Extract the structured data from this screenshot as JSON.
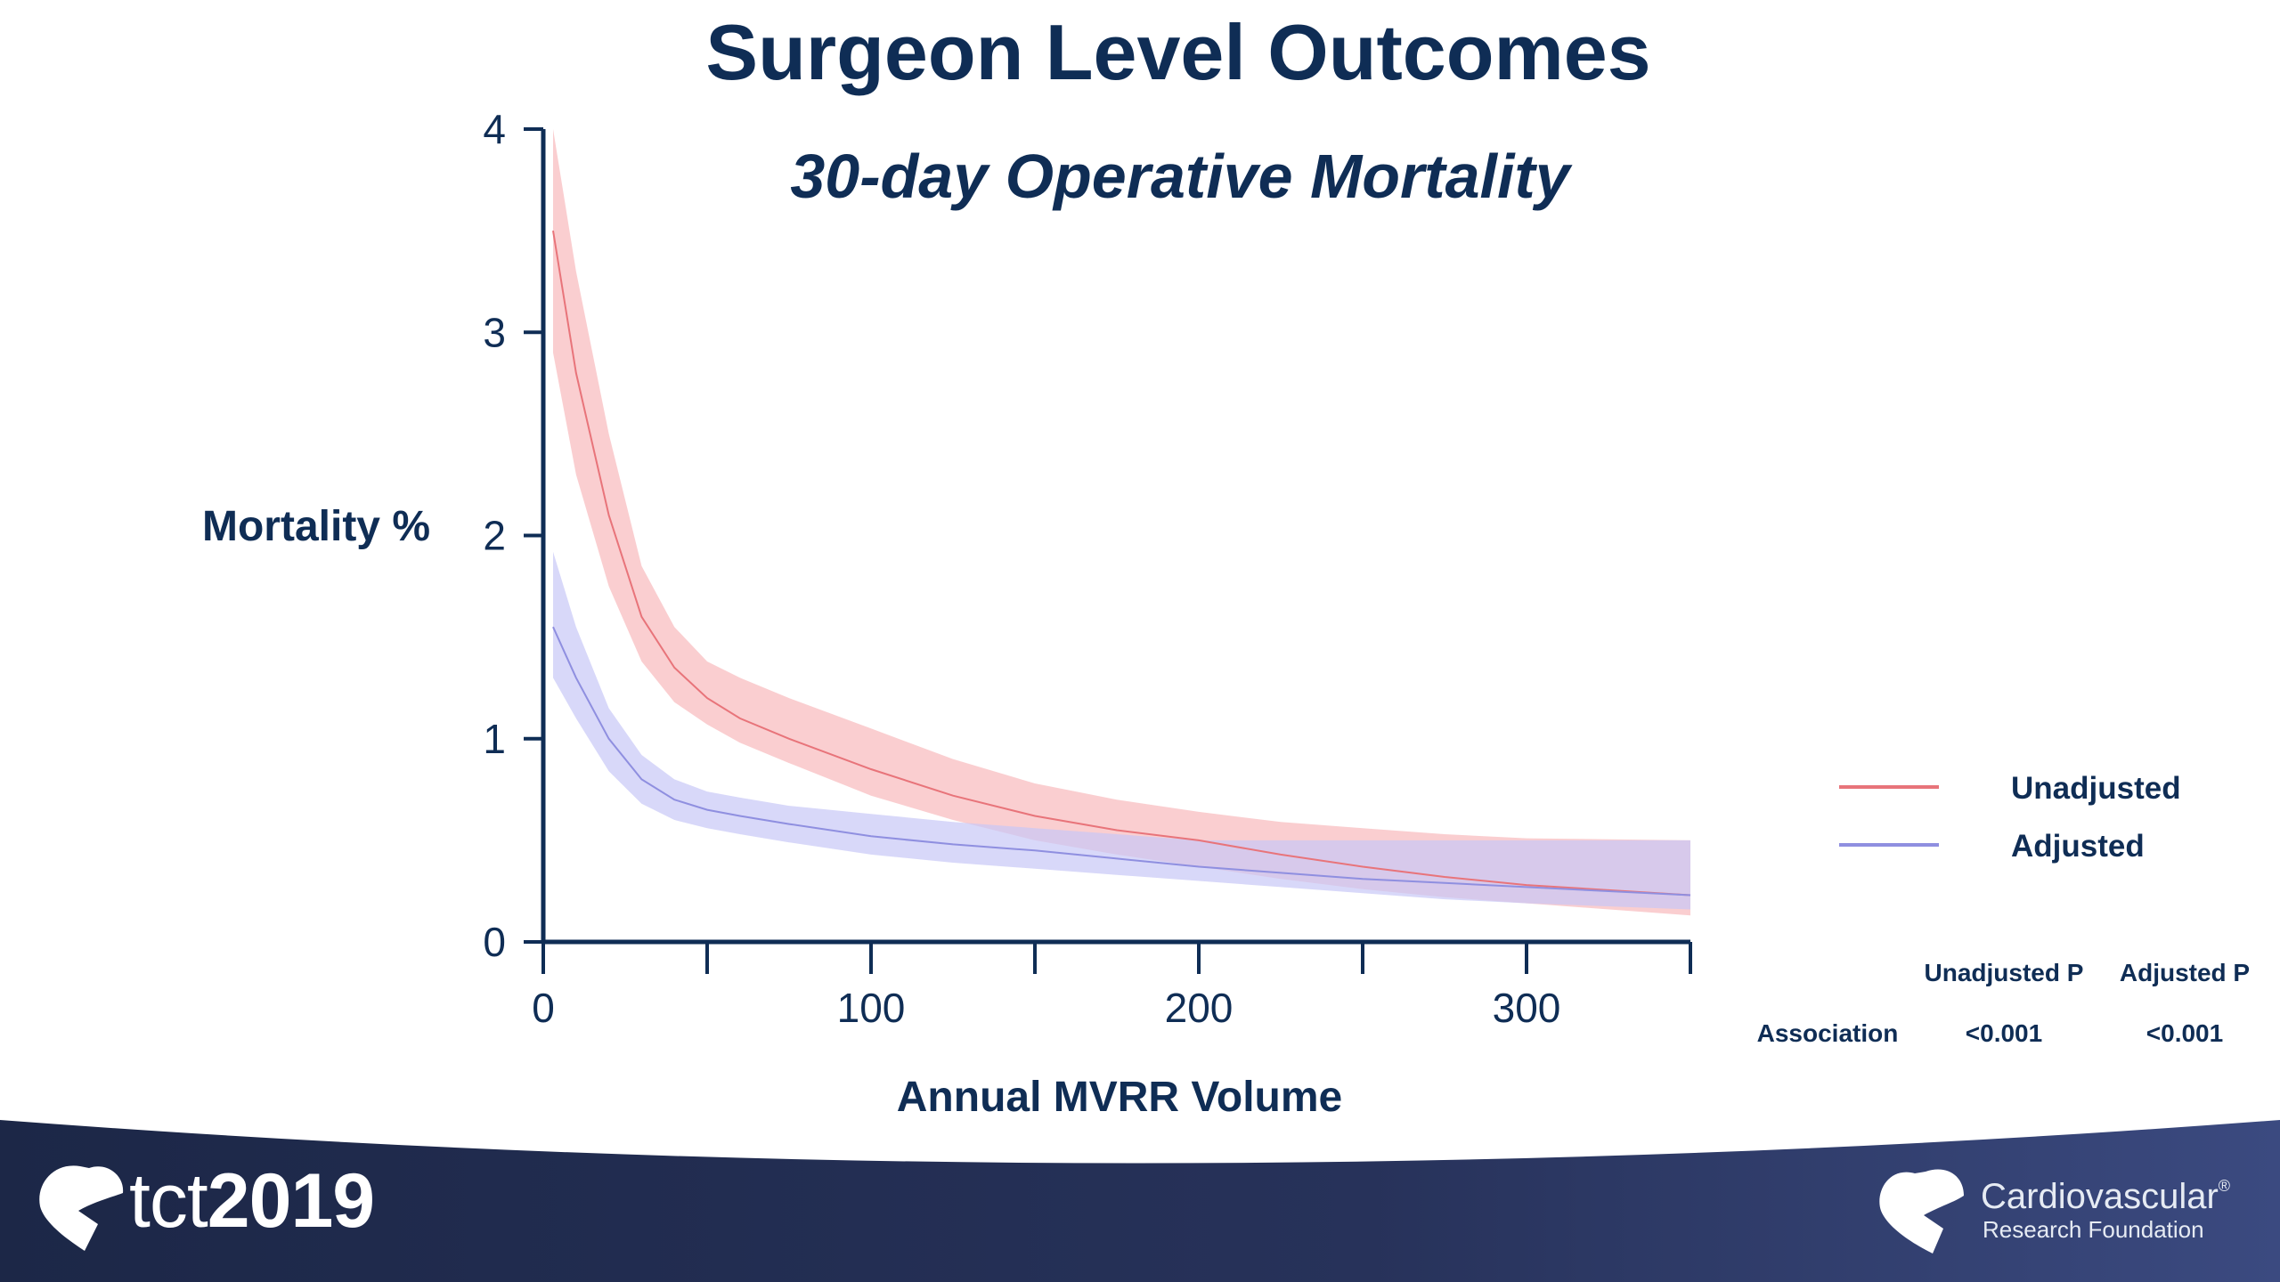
{
  "slide": {
    "title": "Surgeon Level Outcomes"
  },
  "chart_data": {
    "type": "line",
    "title": "30-day Operative Mortality",
    "xlabel": "Annual MVRR Volume",
    "ylabel": "Mortality %",
    "xlim": [
      0,
      350
    ],
    "ylim": [
      0,
      4
    ],
    "x_ticks": [
      0,
      100,
      200,
      300
    ],
    "y_ticks": [
      0,
      1,
      2,
      3,
      4
    ],
    "grid": false,
    "legend_position": "right",
    "series": [
      {
        "name": "Unadjusted",
        "color": "#e8747a",
        "band_color": "#f9c6c8",
        "x": [
          3,
          10,
          20,
          30,
          40,
          50,
          60,
          75,
          100,
          125,
          150,
          175,
          200,
          225,
          250,
          275,
          300,
          350
        ],
        "y": [
          3.5,
          2.8,
          2.1,
          1.6,
          1.35,
          1.2,
          1.1,
          1.0,
          0.85,
          0.72,
          0.62,
          0.55,
          0.5,
          0.43,
          0.37,
          0.32,
          0.28,
          0.23
        ],
        "lower": [
          2.9,
          2.3,
          1.75,
          1.38,
          1.18,
          1.07,
          0.98,
          0.88,
          0.72,
          0.6,
          0.5,
          0.43,
          0.37,
          0.31,
          0.26,
          0.22,
          0.19,
          0.13
        ],
        "upper": [
          4.0,
          3.3,
          2.5,
          1.85,
          1.55,
          1.38,
          1.3,
          1.2,
          1.05,
          0.9,
          0.78,
          0.7,
          0.64,
          0.59,
          0.56,
          0.53,
          0.51,
          0.5
        ]
      },
      {
        "name": "Adjusted",
        "color": "#8f8fe0",
        "band_color": "#c8c8f7",
        "x": [
          3,
          10,
          20,
          30,
          40,
          50,
          60,
          75,
          100,
          125,
          150,
          175,
          200,
          225,
          250,
          275,
          300,
          350
        ],
        "y": [
          1.55,
          1.3,
          1.0,
          0.8,
          0.7,
          0.65,
          0.62,
          0.58,
          0.52,
          0.48,
          0.45,
          0.41,
          0.37,
          0.34,
          0.31,
          0.29,
          0.27,
          0.23
        ],
        "lower": [
          1.3,
          1.1,
          0.84,
          0.68,
          0.6,
          0.56,
          0.53,
          0.49,
          0.43,
          0.39,
          0.36,
          0.33,
          0.3,
          0.27,
          0.24,
          0.21,
          0.19,
          0.16
        ],
        "upper": [
          1.92,
          1.55,
          1.15,
          0.92,
          0.8,
          0.74,
          0.71,
          0.67,
          0.63,
          0.59,
          0.56,
          0.53,
          0.5,
          0.5,
          0.5,
          0.5,
          0.5,
          0.5
        ]
      }
    ],
    "stats_table": {
      "columns": [
        "",
        "Unadjusted P",
        "Adjusted P"
      ],
      "rows": [
        [
          "Association",
          "<0.001",
          "<0.001"
        ]
      ]
    }
  },
  "footer": {
    "left_logo_word": "tct",
    "left_logo_year": "2019",
    "right_logo_name": "Cardiovascular",
    "right_logo_sub": "Research Foundation",
    "right_logo_mark": "®",
    "bar_color": "#1f2a4f"
  }
}
